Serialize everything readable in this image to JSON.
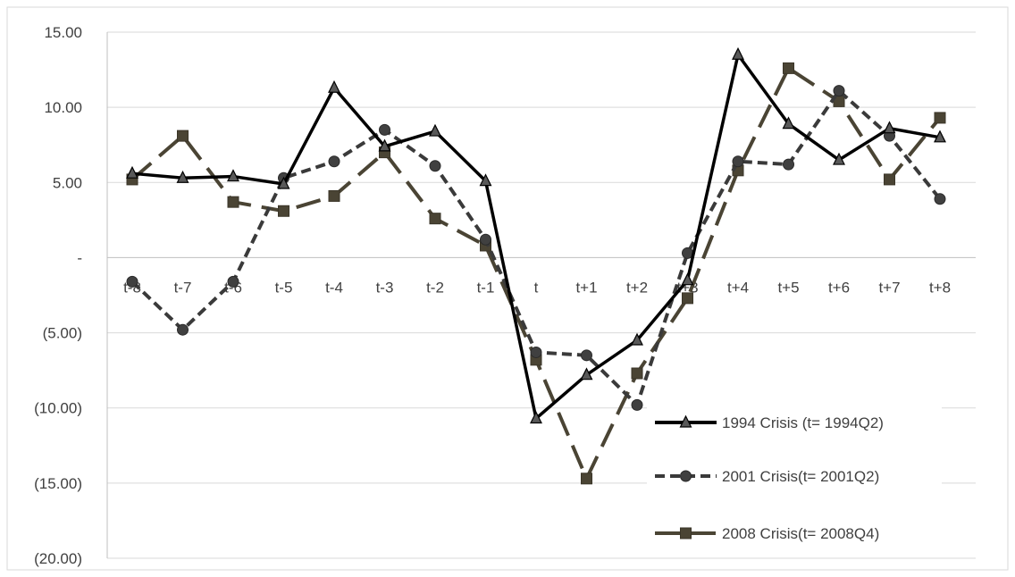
{
  "chart_data": {
    "type": "line",
    "title": "",
    "xlabel": "",
    "ylabel": "",
    "categories": [
      "t-8",
      "t-7",
      "t-6",
      "t-5",
      "t-4",
      "t-3",
      "t-2",
      "t-1",
      "t",
      "t+1",
      "t+2",
      "t+3",
      "t+4",
      "t+5",
      "t+6",
      "t+7",
      "t+8"
    ],
    "ylim": [
      -20,
      15
    ],
    "y_ticks": [
      15,
      10,
      5,
      0,
      -5,
      -10,
      -15,
      -20
    ],
    "y_tick_labels": [
      "15.00",
      "10.00",
      "5.00",
      "-",
      "(5.00)",
      "(10.00)",
      "(15.00)",
      "(20.00)"
    ],
    "grid": true,
    "legend_position": "bottom-right",
    "series": [
      {
        "name": "1994 Crisis (t= 1994Q2)",
        "color": "#000000",
        "dash": "solid",
        "marker": "triangle",
        "values": [
          5.6,
          5.3,
          5.4,
          4.9,
          11.3,
          7.4,
          8.4,
          5.1,
          -10.7,
          -7.8,
          -5.5,
          -1.5,
          13.5,
          8.9,
          6.5,
          8.6,
          8.0
        ]
      },
      {
        "name": "2001 Crisis(t= 2001Q2)",
        "color": "#3a3a3a",
        "dash": "dashed",
        "marker": "circle",
        "values": [
          -1.6,
          -4.8,
          -1.6,
          5.3,
          6.4,
          8.5,
          6.1,
          1.2,
          -6.3,
          -6.5,
          -9.8,
          0.3,
          6.4,
          6.2,
          11.1,
          8.1,
          3.9
        ]
      },
      {
        "name": "2008 Crisis(t= 2008Q4)",
        "color": "#4a4434",
        "dash": "longdash",
        "marker": "square",
        "values": [
          5.2,
          8.1,
          3.7,
          3.1,
          4.1,
          7.0,
          2.6,
          0.8,
          -6.8,
          -14.7,
          -7.7,
          -2.7,
          5.8,
          12.6,
          10.4,
          5.2,
          9.3
        ]
      }
    ]
  }
}
